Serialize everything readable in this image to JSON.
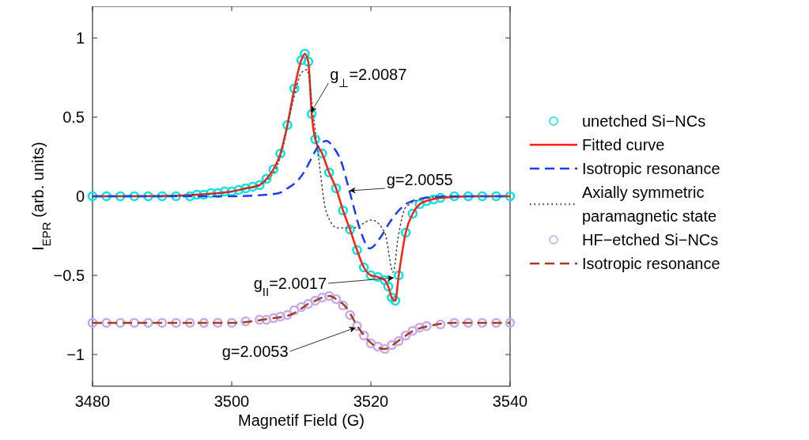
{
  "chart_data": {
    "type": "line",
    "xlabel": "Magnetif Field (G)",
    "ylabel": "I$_{EPR}$ (arb. units)",
    "xlim": [
      3480,
      3540
    ],
    "ylim": [
      -1.2,
      1.2
    ],
    "xticks": [
      3480,
      3500,
      3520,
      3540
    ],
    "yticks": [
      -1,
      -0.5,
      0,
      0.5,
      1
    ],
    "grid": false,
    "legend": "right",
    "series": [
      {
        "name": "unetched Si−NCs",
        "type": "scatter",
        "marker": "circle",
        "color": "#00e5e5",
        "x": [
          3480,
          3482,
          3484,
          3486,
          3488,
          3490,
          3492,
          3494,
          3495,
          3496,
          3497,
          3498,
          3499,
          3500,
          3501,
          3502,
          3503,
          3504,
          3505,
          3506,
          3507,
          3508,
          3509,
          3510,
          3510.5,
          3511,
          3511.5,
          3512,
          3513,
          3514,
          3515,
          3516,
          3517,
          3518,
          3519,
          3520,
          3521,
          3522,
          3522.5,
          3523,
          3523.5,
          3524,
          3525,
          3526,
          3527,
          3528,
          3529,
          3530,
          3532,
          3534,
          3536,
          3538,
          3540
        ],
        "values": [
          0,
          0,
          0,
          0,
          0,
          0,
          0,
          0,
          0.01,
          0.01,
          0.02,
          0.02,
          0.03,
          0.03,
          0.04,
          0.05,
          0.06,
          0.07,
          0.11,
          0.17,
          0.27,
          0.45,
          0.68,
          0.86,
          0.9,
          0.85,
          0.52,
          0.36,
          0.27,
          0.15,
          0.05,
          -0.09,
          -0.21,
          -0.34,
          -0.45,
          -0.5,
          -0.51,
          -0.53,
          -0.57,
          -0.64,
          -0.66,
          -0.5,
          -0.23,
          -0.11,
          -0.05,
          -0.03,
          -0.02,
          -0.01,
          0,
          0,
          0,
          0,
          0
        ]
      },
      {
        "name": "Fitted curve",
        "line_style": "solid",
        "color": "#ff2010",
        "x": [
          3480,
          3490,
          3495,
          3498,
          3500,
          3502,
          3504,
          3505,
          3506,
          3507,
          3508,
          3509,
          3510,
          3510.5,
          3511,
          3511.5,
          3512,
          3513,
          3514,
          3515,
          3516,
          3517,
          3518,
          3519,
          3520,
          3521,
          3522,
          3522.5,
          3523,
          3523.5,
          3524,
          3525,
          3526,
          3527,
          3528,
          3530,
          3535,
          3540
        ],
        "values": [
          0,
          0,
          0.01,
          0.02,
          0.03,
          0.05,
          0.07,
          0.11,
          0.17,
          0.27,
          0.45,
          0.68,
          0.86,
          0.9,
          0.85,
          0.52,
          0.36,
          0.27,
          0.15,
          0.05,
          -0.09,
          -0.21,
          -0.34,
          -0.45,
          -0.5,
          -0.51,
          -0.53,
          -0.57,
          -0.64,
          -0.66,
          -0.5,
          -0.23,
          -0.11,
          -0.05,
          -0.03,
          -0.01,
          0,
          0
        ]
      },
      {
        "name": "Isotropic resonance",
        "line_style": "dashed",
        "color": "#1a3cff",
        "x": [
          3480,
          3500,
          3505,
          3506.8,
          3508,
          3509.5,
          3510.5,
          3511.4,
          3512.2,
          3513.6,
          3514.6,
          3515.6,
          3517,
          3518.6,
          3519.8,
          3521.3,
          3522.7,
          3524,
          3525,
          3528,
          3532,
          3540
        ],
        "values": [
          0,
          0,
          0.01,
          0.02,
          0.05,
          0.1,
          0.16,
          0.235,
          0.3,
          0.35,
          0.31,
          0.235,
          0.02,
          -0.23,
          -0.33,
          -0.265,
          -0.165,
          -0.09,
          -0.05,
          -0.01,
          0,
          0
        ]
      },
      {
        "name": "Axially symmetric paramagnetic state",
        "line_style": "dotted",
        "color": "#505050",
        "x": [
          3480,
          3495,
          3500,
          3505,
          3507,
          3508.8,
          3510,
          3510.8,
          3511.8,
          3512.5,
          3513.6,
          3515.2,
          3517.5,
          3520.1,
          3522,
          3523.2,
          3523.9,
          3525,
          3528,
          3532,
          3540
        ],
        "values": [
          0,
          0.01,
          0.03,
          0.1,
          0.25,
          0.6,
          0.78,
          0.8,
          0.485,
          0.235,
          -0.1,
          -0.2,
          -0.2,
          -0.15,
          -0.23,
          -0.48,
          -0.265,
          -0.07,
          -0.01,
          0,
          0
        ]
      },
      {
        "name": "HF−etched Si−NCs",
        "type": "scatter",
        "marker": "circle",
        "color": "#c8a8f0",
        "x": [
          3480,
          3482,
          3484,
          3486,
          3488,
          3490,
          3492,
          3494,
          3496,
          3498,
          3500,
          3502,
          3504,
          3505,
          3506,
          3507,
          3508,
          3509,
          3510,
          3511,
          3512,
          3513,
          3514,
          3515,
          3516,
          3517,
          3518,
          3519,
          3520,
          3521,
          3522,
          3523,
          3524,
          3525,
          3526,
          3527,
          3528,
          3530,
          3532,
          3534,
          3536,
          3538,
          3540
        ],
        "values": [
          -0.8,
          -0.8,
          -0.8,
          -0.8,
          -0.8,
          -0.8,
          -0.8,
          -0.8,
          -0.8,
          -0.8,
          -0.8,
          -0.79,
          -0.78,
          -0.78,
          -0.77,
          -0.76,
          -0.75,
          -0.72,
          -0.7,
          -0.68,
          -0.66,
          -0.64,
          -0.63,
          -0.65,
          -0.69,
          -0.75,
          -0.82,
          -0.88,
          -0.93,
          -0.95,
          -0.965,
          -0.94,
          -0.915,
          -0.88,
          -0.85,
          -0.83,
          -0.82,
          -0.81,
          -0.8,
          -0.8,
          -0.8,
          -0.8,
          -0.8
        ]
      },
      {
        "name": "Isotropic resonance",
        "line_style": "dashed",
        "color": "#a0401a",
        "x": [
          3480,
          3500,
          3504.5,
          3506,
          3508.4,
          3510,
          3511,
          3511.8,
          3513,
          3514.1,
          3515,
          3516.4,
          3518.2,
          3520.1,
          3522,
          3523.9,
          3526.1,
          3528.9,
          3532,
          3540
        ],
        "values": [
          -0.8,
          -0.8,
          -0.78,
          -0.77,
          -0.75,
          -0.71,
          -0.68,
          -0.665,
          -0.64,
          -0.63,
          -0.65,
          -0.7,
          -0.83,
          -0.93,
          -0.965,
          -0.915,
          -0.85,
          -0.815,
          -0.8,
          -0.8
        ]
      }
    ],
    "annotations": [
      {
        "text": "g$_{⊥}$=2.0087",
        "x": 3511.4,
        "y": 0.53
      },
      {
        "text": "g=2.0055",
        "x": 3516.9,
        "y": 0.035
      },
      {
        "text": "g$_{II}$=2.0017",
        "x": 3523.3,
        "y": -0.515
      },
      {
        "text": "g=2.0053",
        "x": 3517.8,
        "y": -0.83
      }
    ]
  }
}
